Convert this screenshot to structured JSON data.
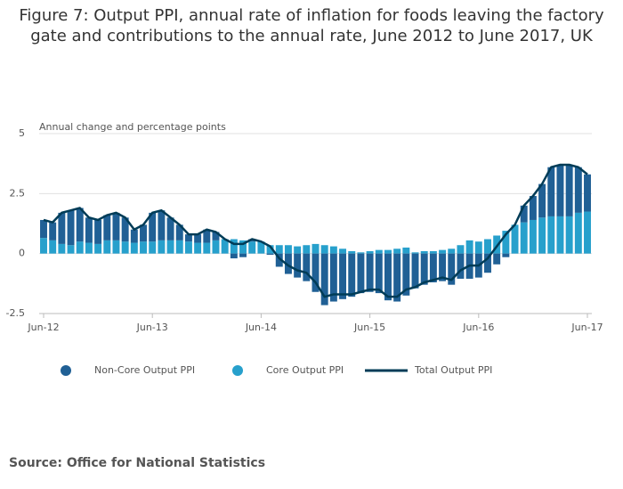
{
  "chart_data": {
    "type": "bar-line",
    "title": "Figure 7: Output PPI, annual rate of inflation for foods leaving the factory gate and contributions to the annual rate, June 2012 to June 2017, UK",
    "y_label": "Annual change and percentage points",
    "source": "Source: Office for National Statistics",
    "categories": [
      "Jun-12",
      null,
      null,
      null,
      null,
      null,
      null,
      null,
      null,
      null,
      null,
      null,
      "Jun-13",
      null,
      null,
      null,
      null,
      null,
      null,
      null,
      null,
      null,
      null,
      null,
      "Jun-14",
      null,
      null,
      null,
      null,
      null,
      null,
      null,
      null,
      null,
      null,
      null,
      "Jun-15",
      null,
      null,
      null,
      null,
      null,
      null,
      null,
      null,
      null,
      null,
      null,
      "Jun-16",
      null,
      null,
      null,
      null,
      null,
      null,
      null,
      null,
      null,
      null,
      null,
      "Jun-17"
    ],
    "ylim": [
      -2.5,
      5
    ],
    "yticks": [
      -2.5,
      0,
      2.5,
      5
    ],
    "grid": true,
    "series": [
      {
        "name": "Non-Core Output PPI",
        "type": "bar",
        "color": "#206095",
        "values": [
          0.75,
          0.75,
          1.3,
          1.45,
          1.4,
          1.05,
          1.0,
          1.05,
          1.15,
          1.0,
          0.55,
          0.7,
          1.2,
          1.25,
          0.95,
          0.65,
          0.3,
          0.35,
          0.55,
          0.35,
          0.0,
          -0.2,
          -0.15,
          0.1,
          0,
          -0.05,
          -0.55,
          -0.85,
          -1.0,
          -1.15,
          -1.6,
          -2.15,
          -2.0,
          -1.9,
          -1.8,
          -1.65,
          -1.6,
          -1.65,
          -1.95,
          -2.0,
          -1.75,
          -1.45,
          -1.3,
          -1.2,
          -1.15,
          -1.3,
          -1.05,
          -1.05,
          -1.0,
          -0.8,
          -0.45,
          -0.15,
          0,
          0.7,
          1.0,
          1.4,
          2.05,
          2.15,
          2.15,
          1.9,
          1.55
        ]
      },
      {
        "name": "Core Output PPI",
        "type": "bar",
        "color": "#27a0cc",
        "values": [
          0.65,
          0.55,
          0.4,
          0.35,
          0.5,
          0.45,
          0.4,
          0.55,
          0.55,
          0.5,
          0.45,
          0.5,
          0.5,
          0.55,
          0.55,
          0.55,
          0.5,
          0.45,
          0.45,
          0.55,
          0.6,
          0.6,
          0.55,
          0.5,
          0.5,
          0.35,
          0.35,
          0.35,
          0.3,
          0.35,
          0.4,
          0.35,
          0.3,
          0.2,
          0.1,
          0.05,
          0.1,
          0.15,
          0.15,
          0.2,
          0.25,
          0.05,
          0.1,
          0.1,
          0.15,
          0.2,
          0.35,
          0.55,
          0.5,
          0.6,
          0.75,
          0.95,
          1.2,
          1.3,
          1.4,
          1.5,
          1.55,
          1.55,
          1.55,
          1.7,
          1.75
        ]
      },
      {
        "name": "Total Output PPI",
        "type": "line",
        "color": "#003c57",
        "values": [
          1.4,
          1.3,
          1.7,
          1.8,
          1.9,
          1.5,
          1.4,
          1.6,
          1.7,
          1.5,
          1.0,
          1.2,
          1.7,
          1.8,
          1.5,
          1.2,
          0.8,
          0.8,
          1.0,
          0.9,
          0.6,
          0.4,
          0.4,
          0.6,
          0.5,
          0.3,
          -0.2,
          -0.5,
          -0.7,
          -0.8,
          -1.2,
          -1.8,
          -1.7,
          -1.7,
          -1.7,
          -1.6,
          -1.5,
          -1.5,
          -1.8,
          -1.8,
          -1.5,
          -1.4,
          -1.2,
          -1.1,
          -1.0,
          -1.1,
          -0.7,
          -0.5,
          -0.5,
          -0.2,
          0.3,
          0.8,
          1.2,
          2.0,
          2.4,
          2.9,
          3.6,
          3.7,
          3.7,
          3.6,
          3.3
        ]
      }
    ]
  }
}
